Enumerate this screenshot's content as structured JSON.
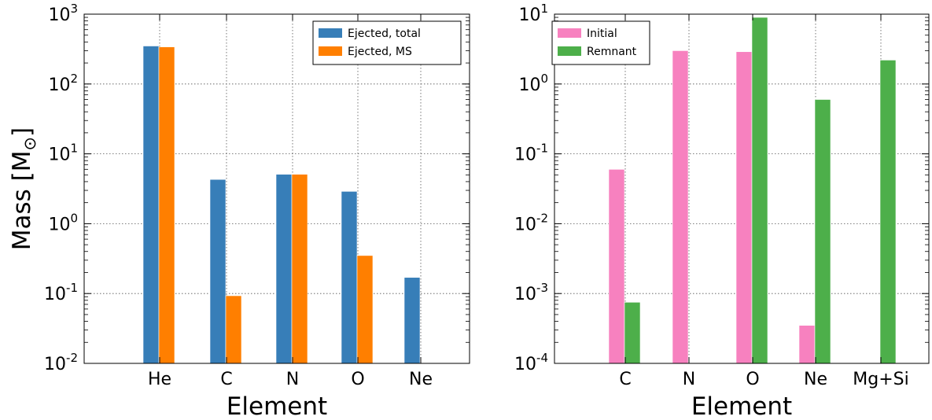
{
  "chart_data": [
    {
      "type": "bar",
      "xlabel": "Element",
      "ylabel": "Mass [M",
      "ylabel_symbol": "⊙",
      "ylabel_close": "]",
      "yscale": "log",
      "ylim": [
        0.01,
        1000
      ],
      "yticks": [
        {
          "base": "10",
          "exp": "-2"
        },
        {
          "base": "10",
          "exp": "-1"
        },
        {
          "base": "10",
          "exp": "0"
        },
        {
          "base": "10",
          "exp": "1"
        },
        {
          "base": "10",
          "exp": "2"
        },
        {
          "base": "10",
          "exp": "3"
        }
      ],
      "grid": true,
      "legend_position": "top-right",
      "categories": [
        "He",
        "C",
        "N",
        "O",
        "Ne"
      ],
      "series": [
        {
          "name": "Ejected, total",
          "color": "#377eb8",
          "values": [
            350,
            4.3,
            5.1,
            2.9,
            0.17
          ]
        },
        {
          "name": "Ejected, MS",
          "color": "#ff7f00",
          "values": [
            340,
            0.093,
            5.1,
            0.35,
            null
          ]
        }
      ]
    },
    {
      "type": "bar",
      "xlabel": "Element",
      "ylabel": "",
      "yscale": "log",
      "ylim": [
        0.0001,
        10
      ],
      "yticks": [
        {
          "base": "10",
          "exp": "-4"
        },
        {
          "base": "10",
          "exp": "-3"
        },
        {
          "base": "10",
          "exp": "-2"
        },
        {
          "base": "10",
          "exp": "-1"
        },
        {
          "base": "10",
          "exp": "0"
        },
        {
          "base": "10",
          "exp": "1"
        }
      ],
      "grid": true,
      "legend_position": "top-left",
      "categories": [
        "C",
        "N",
        "O",
        "Ne",
        "Mg+Si"
      ],
      "series": [
        {
          "name": "Initial",
          "color": "#f781bf",
          "values": [
            0.06,
            3.0,
            2.9,
            0.00035,
            null
          ]
        },
        {
          "name": "Remnant",
          "color": "#4daf4a",
          "values": [
            0.00075,
            null,
            9.0,
            0.6,
            2.2
          ]
        }
      ]
    }
  ]
}
